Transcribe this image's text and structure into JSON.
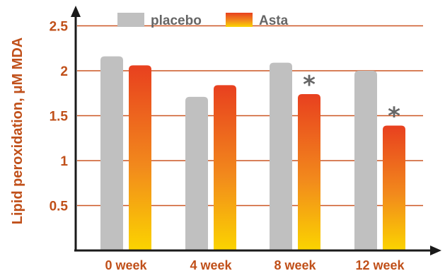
{
  "chart_data": {
    "type": "bar",
    "ylabel": "Lipid peroxidation, μM MDA",
    "categories": [
      "0 week",
      "4 week",
      "8 week",
      "12 week"
    ],
    "series": [
      {
        "name": "placebo",
        "values": [
          2.16,
          1.71,
          2.09,
          2.0
        ]
      },
      {
        "name": "Asta",
        "values": [
          2.06,
          1.84,
          1.74,
          1.39
        ]
      }
    ],
    "significance_marks": [
      {
        "category": "8 week",
        "series": "Asta",
        "mark": "*"
      },
      {
        "category": "12 week",
        "series": "Asta",
        "mark": "*"
      }
    ],
    "yticks": [
      "0.5",
      "1",
      "1.5",
      "2",
      "2.5"
    ],
    "ylim": [
      0.0,
      2.75
    ],
    "grid": true,
    "legend": "top",
    "colors": {
      "placebo": "#c0c0c0",
      "asta_top": "#e8401f",
      "asta_bottom": "#fbd400",
      "grid": "#cc5522",
      "axis": "#1a1a1a",
      "label_text": "#c0501a",
      "tick_text": "#c0501a",
      "legend_text": "#666666",
      "star": "#666666"
    }
  }
}
